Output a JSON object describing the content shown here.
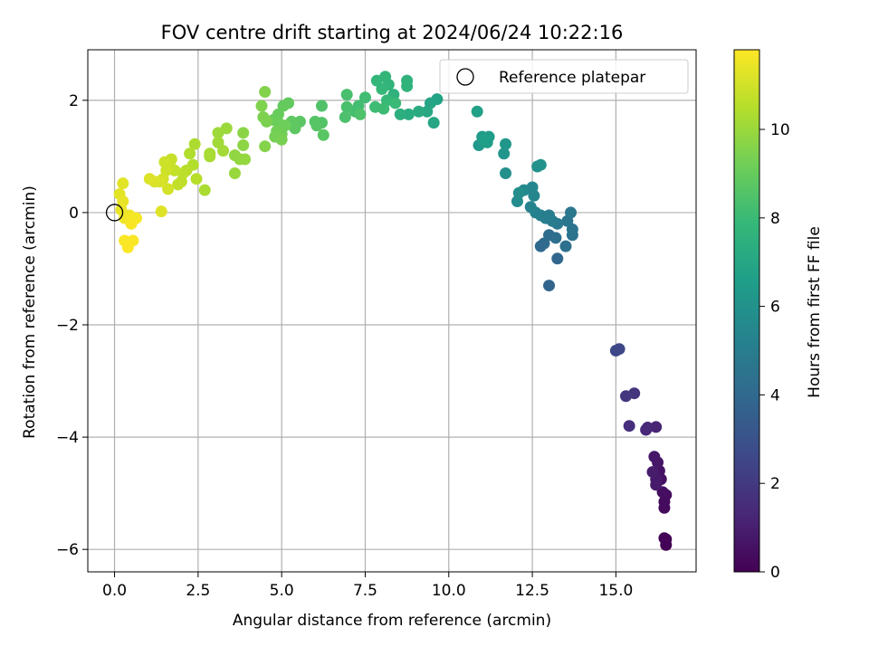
{
  "chart_data": {
    "type": "scatter",
    "title": "FOV centre drift starting at 2024/06/24 10:22:16",
    "xlabel": "Angular distance from reference (arcmin)",
    "ylabel": "Rotation from reference (arcmin)",
    "xlim": [
      -0.8,
      17.4
    ],
    "ylim": [
      -6.4,
      2.9
    ],
    "xticks": [
      0.0,
      2.5,
      5.0,
      7.5,
      10.0,
      12.5,
      15.0
    ],
    "xtick_labels": [
      "0.0",
      "2.5",
      "5.0",
      "7.5",
      "10.0",
      "12.5",
      "15.0"
    ],
    "yticks": [
      -6,
      -4,
      -2,
      0,
      2
    ],
    "ytick_labels": [
      "−6",
      "−4",
      "−2",
      "0",
      "2"
    ],
    "grid": true,
    "legend": {
      "position": "top-right",
      "entries": [
        "Reference platepar"
      ]
    },
    "reference_point": {
      "x": 0.0,
      "y": 0.0
    },
    "colorbar": {
      "label": "Hours from first FF file",
      "range": [
        0,
        11.8
      ],
      "ticks": [
        0,
        2,
        4,
        6,
        8,
        10
      ],
      "tick_labels": [
        "0",
        "2",
        "4",
        "6",
        "8",
        "10"
      ],
      "colormap": "viridis"
    },
    "colormap_stops": [
      "#440154",
      "#482878",
      "#3e4989",
      "#31688e",
      "#26828e",
      "#1f9e89",
      "#35b779",
      "#6ece58",
      "#b5de2b",
      "#fde725"
    ],
    "series": [
      {
        "points": [
          [
            16.5,
            -5.92,
            0.05
          ],
          [
            16.5,
            -5.82,
            0.1
          ],
          [
            16.45,
            -5.8,
            0.15
          ],
          [
            16.45,
            -5.26,
            0.3
          ],
          [
            16.45,
            -5.15,
            0.35
          ],
          [
            16.5,
            -5.03,
            0.4
          ],
          [
            16.4,
            -4.98,
            0.45
          ],
          [
            16.35,
            -4.75,
            0.55
          ],
          [
            16.3,
            -4.6,
            0.6
          ],
          [
            16.25,
            -4.45,
            0.7
          ],
          [
            16.15,
            -4.35,
            0.75
          ],
          [
            16.2,
            -4.75,
            0.8
          ],
          [
            16.2,
            -4.85,
            0.85
          ],
          [
            16.1,
            -4.62,
            0.9
          ],
          [
            16.2,
            -3.82,
            1.2
          ],
          [
            15.95,
            -3.83,
            1.3
          ],
          [
            15.9,
            -3.87,
            1.35
          ],
          [
            15.4,
            -3.8,
            1.6
          ],
          [
            15.55,
            -3.22,
            1.8
          ],
          [
            15.3,
            -3.27,
            1.9
          ],
          [
            15.1,
            -2.43,
            2.5
          ],
          [
            15.0,
            -2.46,
            2.6
          ],
          [
            13.0,
            -1.3,
            3.8
          ],
          [
            13.25,
            -0.82,
            3.9
          ],
          [
            12.75,
            -0.6,
            4.0
          ],
          [
            12.85,
            -0.55,
            4.1
          ],
          [
            13.0,
            -0.4,
            4.2
          ],
          [
            13.2,
            -0.45,
            4.3
          ],
          [
            13.5,
            -0.6,
            4.4
          ],
          [
            13.7,
            -0.4,
            4.5
          ],
          [
            13.7,
            -0.3,
            4.55
          ],
          [
            13.55,
            -0.15,
            4.6
          ],
          [
            13.65,
            0.0,
            4.7
          ],
          [
            13.25,
            -0.2,
            4.8
          ],
          [
            13.1,
            -0.15,
            4.9
          ],
          [
            13.0,
            -0.05,
            5.0
          ],
          [
            12.9,
            -0.1,
            5.05
          ],
          [
            12.75,
            -0.05,
            5.1
          ],
          [
            12.6,
            0.0,
            5.2
          ],
          [
            12.45,
            0.1,
            5.3
          ],
          [
            12.55,
            0.3,
            5.4
          ],
          [
            12.5,
            0.45,
            5.5
          ],
          [
            12.25,
            0.4,
            5.6
          ],
          [
            12.05,
            0.2,
            5.7
          ],
          [
            12.1,
            0.35,
            5.8
          ],
          [
            11.7,
            0.7,
            5.9
          ],
          [
            12.65,
            0.82,
            5.95
          ],
          [
            12.75,
            0.85,
            6.0
          ],
          [
            11.65,
            1.05,
            6.1
          ],
          [
            11.7,
            1.22,
            6.2
          ],
          [
            10.9,
            1.2,
            6.3
          ],
          [
            11.0,
            1.35,
            6.4
          ],
          [
            11.2,
            1.35,
            6.5
          ],
          [
            11.15,
            1.25,
            6.55
          ],
          [
            11.05,
            1.3,
            6.6
          ],
          [
            10.85,
            1.8,
            6.7
          ],
          [
            9.65,
            2.02,
            6.8
          ],
          [
            9.45,
            1.95,
            6.9
          ],
          [
            9.55,
            1.6,
            7.0
          ],
          [
            9.35,
            1.8,
            7.1
          ],
          [
            9.1,
            1.8,
            7.2
          ],
          [
            8.8,
            1.75,
            7.3
          ],
          [
            8.55,
            1.75,
            7.4
          ],
          [
            8.35,
            2.1,
            7.5
          ],
          [
            8.75,
            2.35,
            7.6
          ],
          [
            8.75,
            2.25,
            7.65
          ],
          [
            8.2,
            2.28,
            7.7
          ],
          [
            8.1,
            2.42,
            7.75
          ],
          [
            7.85,
            2.35,
            7.8
          ],
          [
            8.0,
            2.2,
            7.85
          ],
          [
            8.15,
            2.0,
            7.9
          ],
          [
            8.4,
            1.95,
            8.0
          ],
          [
            8.05,
            1.85,
            8.05
          ],
          [
            7.8,
            1.88,
            8.1
          ],
          [
            7.5,
            2.05,
            8.15
          ],
          [
            7.3,
            1.9,
            8.2
          ],
          [
            7.2,
            1.8,
            8.25
          ],
          [
            6.95,
            2.1,
            8.3
          ],
          [
            6.95,
            1.88,
            8.35
          ],
          [
            6.9,
            1.7,
            8.4
          ],
          [
            7.35,
            1.75,
            8.45
          ],
          [
            6.2,
            1.9,
            8.5
          ],
          [
            6.2,
            1.6,
            8.55
          ],
          [
            6.0,
            1.62,
            8.6
          ],
          [
            6.05,
            1.55,
            8.65
          ],
          [
            6.25,
            1.38,
            8.7
          ],
          [
            5.55,
            1.62,
            8.75
          ],
          [
            5.4,
            1.5,
            8.8
          ],
          [
            5.3,
            1.62,
            8.85
          ],
          [
            5.2,
            1.95,
            8.9
          ],
          [
            5.05,
            1.9,
            8.95
          ],
          [
            4.9,
            1.75,
            9.0
          ],
          [
            4.75,
            1.65,
            9.05
          ],
          [
            4.9,
            1.6,
            9.1
          ],
          [
            5.1,
            1.55,
            9.15
          ],
          [
            5.0,
            1.4,
            9.2
          ],
          [
            4.85,
            1.45,
            9.25
          ],
          [
            4.8,
            1.35,
            9.3
          ],
          [
            5.0,
            1.3,
            9.35
          ],
          [
            4.55,
            1.62,
            9.4
          ],
          [
            4.45,
            1.7,
            9.45
          ],
          [
            4.4,
            1.9,
            9.5
          ],
          [
            4.5,
            2.15,
            9.55
          ],
          [
            4.5,
            1.18,
            9.6
          ],
          [
            3.85,
            1.42,
            9.7
          ],
          [
            3.85,
            1.2,
            9.75
          ],
          [
            3.6,
            1.02,
            9.8
          ],
          [
            3.75,
            0.95,
            9.85
          ],
          [
            3.9,
            0.95,
            9.9
          ],
          [
            3.6,
            0.7,
            9.95
          ],
          [
            3.35,
            1.5,
            10.0
          ],
          [
            3.1,
            1.42,
            10.05
          ],
          [
            3.1,
            1.25,
            10.1
          ],
          [
            3.25,
            1.1,
            10.15
          ],
          [
            2.85,
            1.05,
            10.2
          ],
          [
            2.85,
            1.0,
            10.25
          ],
          [
            2.7,
            0.4,
            10.3
          ],
          [
            2.4,
            1.22,
            10.35
          ],
          [
            2.25,
            1.05,
            10.4
          ],
          [
            2.35,
            0.85,
            10.45
          ],
          [
            2.45,
            0.6,
            10.5
          ],
          [
            2.15,
            0.75,
            10.55
          ],
          [
            2.05,
            0.7,
            10.6
          ],
          [
            2.0,
            0.55,
            10.65
          ],
          [
            1.9,
            0.5,
            10.7
          ],
          [
            1.8,
            0.75,
            10.75
          ],
          [
            1.7,
            0.95,
            10.8
          ],
          [
            1.65,
            0.85,
            10.85
          ],
          [
            1.5,
            0.9,
            10.9
          ],
          [
            1.55,
            0.75,
            10.95
          ],
          [
            1.45,
            0.6,
            11.0
          ],
          [
            1.6,
            0.42,
            11.05
          ],
          [
            1.35,
            0.55,
            11.1
          ],
          [
            1.2,
            0.55,
            11.15
          ],
          [
            1.05,
            0.6,
            11.2
          ],
          [
            1.4,
            0.02,
            11.25
          ],
          [
            0.25,
            0.52,
            11.3
          ],
          [
            0.15,
            0.33,
            11.35
          ],
          [
            0.25,
            0.2,
            11.4
          ],
          [
            0.2,
            0.05,
            11.45
          ],
          [
            0.3,
            -0.1,
            11.5
          ],
          [
            0.45,
            -0.05,
            11.55
          ],
          [
            0.5,
            -0.1,
            11.6
          ],
          [
            0.65,
            -0.1,
            11.65
          ],
          [
            0.5,
            -0.2,
            11.7
          ],
          [
            0.55,
            -0.5,
            11.72
          ],
          [
            0.3,
            -0.5,
            11.74
          ],
          [
            0.4,
            -0.62,
            11.76
          ]
        ]
      }
    ]
  }
}
